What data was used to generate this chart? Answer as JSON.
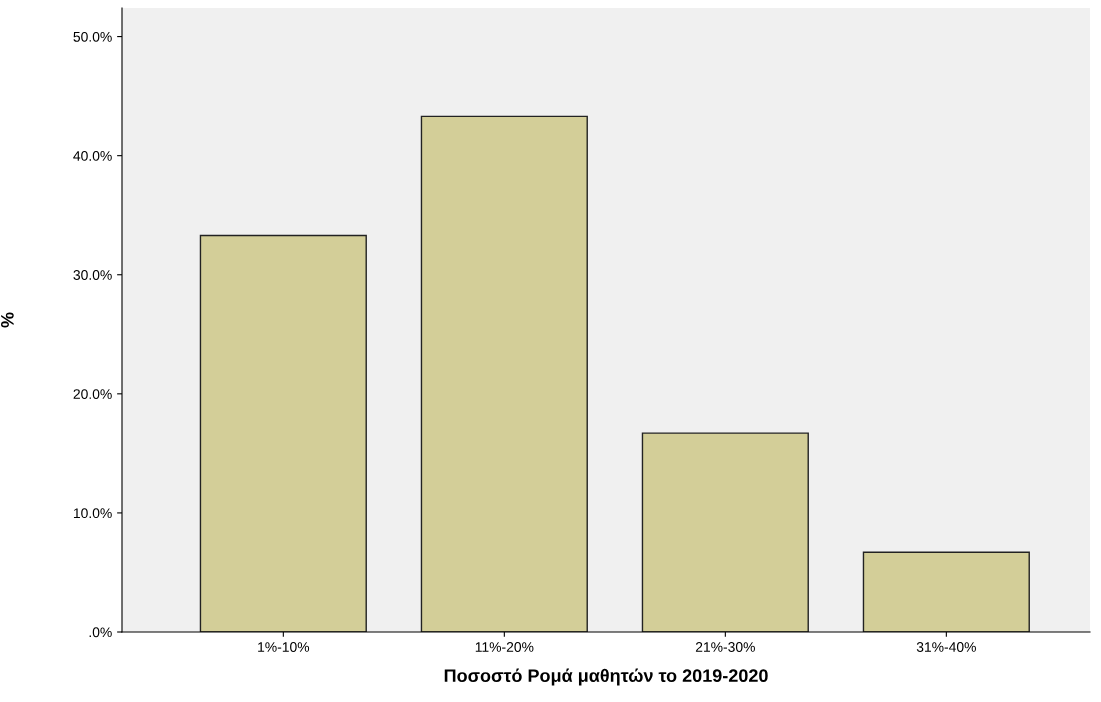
{
  "chart_data": {
    "type": "bar",
    "xlabel": "Ποσοστό Ρομά μαθητών το 2019-2020",
    "ylabel": "%",
    "categories": [
      "1%-10%",
      "11%-20%",
      "21%-30%",
      "31%-40%"
    ],
    "values": [
      33.3,
      43.3,
      16.7,
      6.7
    ],
    "color": "#d3ce98",
    "ylim": [
      0,
      52.4
    ],
    "yticks": [
      {
        "value": 0,
        "label": ".0%"
      },
      {
        "value": 10,
        "label": "10.0%"
      },
      {
        "value": 20,
        "label": "20.0%"
      },
      {
        "value": 30,
        "label": "30.0%"
      },
      {
        "value": 40,
        "label": "40.0%"
      },
      {
        "value": 50,
        "label": "50.0%"
      }
    ],
    "grid": false,
    "legend": false
  }
}
